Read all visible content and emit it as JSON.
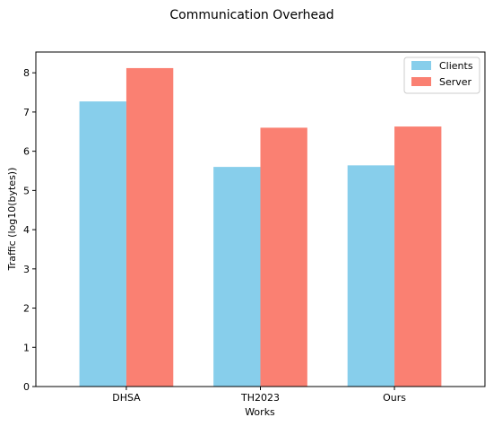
{
  "chart_data": {
    "type": "bar",
    "title": "Communication Overhead",
    "xlabel": "Works",
    "ylabel": "Traffic (log10(bytes))",
    "categories": [
      "DHSA",
      "TH2023",
      "Ours"
    ],
    "series": [
      {
        "name": "Clients",
        "values": [
          7.27,
          5.6,
          5.64
        ],
        "color": "#87CEEB"
      },
      {
        "name": "Server",
        "values": [
          8.12,
          6.6,
          6.63
        ],
        "color": "#FA8072"
      }
    ],
    "ylim": [
      0,
      8.53
    ],
    "yticks": [
      "0",
      "1",
      "2",
      "3",
      "4",
      "5",
      "6",
      "7",
      "8"
    ],
    "grid": false,
    "legend_position": "top-right"
  }
}
